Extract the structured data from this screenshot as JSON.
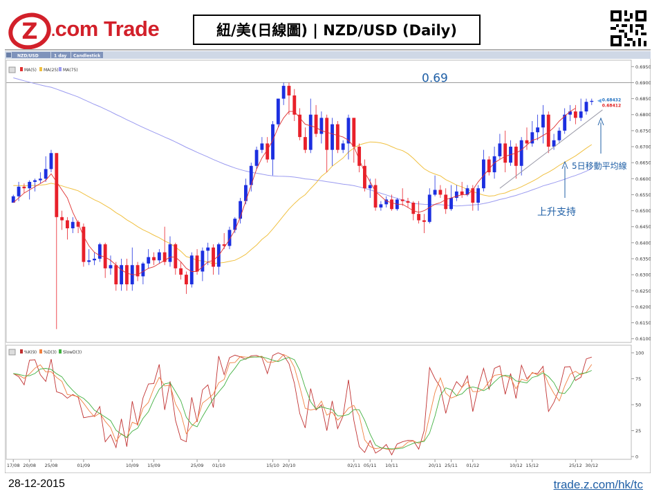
{
  "header": {
    "logo_text_main": "com Trade",
    "logo_text_letter": "Z",
    "title": "紐/美(日線圖) | NZD/USD (Daily)"
  },
  "toolbar": {
    "symbol": "NZD/USD",
    "period": "1 day",
    "style": "Candlestick"
  },
  "legend_price": [
    "MA(5)",
    "MA(25)",
    "MA(75)"
  ],
  "legend_stoch": [
    "%K(9)",
    "%D(3)",
    "SlowD(3)"
  ],
  "colors": {
    "bull": "#1c2fe0",
    "bear": "#e8202a",
    "ma5": "#e03030",
    "ma25": "#f0c040",
    "ma75": "#9a9af0",
    "k": "#c03030",
    "d": "#f08040",
    "slowd": "#40b040",
    "annot": "#1f5fa6"
  },
  "footer": {
    "date": "28-12-2015",
    "url": "trade.z.com/hk/tc"
  },
  "chart_data": {
    "type": "candlestick",
    "title": "紐/美(日線圖) | NZD/USD (Daily)",
    "price_axis": {
      "ylim": [
        0.6095,
        0.6955
      ],
      "ticks": [
        "0.69500",
        "0.69000",
        "0.68500",
        "0.68000",
        "0.67500",
        "0.67000",
        "0.66500",
        "0.66000",
        "0.65500",
        "0.65000",
        "0.64500",
        "0.64000",
        "0.63500",
        "0.63000",
        "0.62500",
        "0.62000",
        "0.61500",
        "0.61000"
      ],
      "current_labels": [
        "0.68432",
        "0.68412"
      ]
    },
    "stoch_axis": {
      "ylim": [
        0,
        100
      ],
      "ticks": [
        "100",
        "75",
        "50",
        "25",
        "0"
      ]
    },
    "x_ticks": [
      {
        "i": 0,
        "label": "17/08"
      },
      {
        "i": 3,
        "label": "20/08"
      },
      {
        "i": 7,
        "label": "25/08"
      },
      {
        "i": 13,
        "label": "01/09"
      },
      {
        "i": 22,
        "label": "10/09"
      },
      {
        "i": 26,
        "label": "15/09"
      },
      {
        "i": 34,
        "label": "25/09"
      },
      {
        "i": 38,
        "label": "01/10"
      },
      {
        "i": 48,
        "label": "15/10"
      },
      {
        "i": 51,
        "label": "20/10"
      },
      {
        "i": 63,
        "label": "02/11"
      },
      {
        "i": 66,
        "label": "05/11"
      },
      {
        "i": 70,
        "label": "10/11"
      },
      {
        "i": 78,
        "label": "20/11"
      },
      {
        "i": 81,
        "label": "25/11"
      },
      {
        "i": 85,
        "label": "01/12"
      },
      {
        "i": 93,
        "label": "10/12"
      },
      {
        "i": 96,
        "label": "15/12"
      },
      {
        "i": 104,
        "label": "25/12"
      },
      {
        "i": 107,
        "label": "30/12"
      }
    ],
    "resistance_level": 0.69,
    "candles": [
      [
        0.6525,
        0.6545,
        0.6525,
        0.655
      ],
      [
        0.6545,
        0.6575,
        0.653,
        0.659
      ],
      [
        0.6575,
        0.657,
        0.6555,
        0.6585
      ],
      [
        0.657,
        0.659,
        0.6535,
        0.6595
      ],
      [
        0.659,
        0.6595,
        0.656,
        0.66
      ],
      [
        0.6595,
        0.66,
        0.6585,
        0.662
      ],
      [
        0.66,
        0.663,
        0.659,
        0.667
      ],
      [
        0.663,
        0.668,
        0.662,
        0.669
      ],
      [
        0.668,
        0.648,
        0.613,
        0.668
      ],
      [
        0.648,
        0.647,
        0.644,
        0.65
      ],
      [
        0.647,
        0.6445,
        0.641,
        0.648
      ],
      [
        0.6445,
        0.6465,
        0.643,
        0.648
      ],
      [
        0.6465,
        0.645,
        0.643,
        0.647
      ],
      [
        0.645,
        0.634,
        0.6325,
        0.646
      ],
      [
        0.634,
        0.6345,
        0.633,
        0.638
      ],
      [
        0.6345,
        0.635,
        0.633,
        0.637
      ],
      [
        0.635,
        0.6395,
        0.634,
        0.64
      ],
      [
        0.6395,
        0.632,
        0.629,
        0.64
      ],
      [
        0.632,
        0.633,
        0.63,
        0.636
      ],
      [
        0.633,
        0.627,
        0.625,
        0.634
      ],
      [
        0.627,
        0.633,
        0.625,
        0.635
      ],
      [
        0.633,
        0.627,
        0.625,
        0.635
      ],
      [
        0.627,
        0.633,
        0.625,
        0.6385
      ],
      [
        0.633,
        0.6295,
        0.628,
        0.634
      ],
      [
        0.6295,
        0.6335,
        0.627,
        0.634
      ],
      [
        0.6335,
        0.6355,
        0.632,
        0.638
      ],
      [
        0.6355,
        0.6345,
        0.633,
        0.637
      ],
      [
        0.6345,
        0.637,
        0.6335,
        0.638
      ],
      [
        0.637,
        0.634,
        0.633,
        0.645
      ],
      [
        0.634,
        0.6395,
        0.6325,
        0.642
      ],
      [
        0.6395,
        0.632,
        0.63,
        0.64
      ],
      [
        0.632,
        0.63,
        0.6285,
        0.634
      ],
      [
        0.63,
        0.627,
        0.624,
        0.631
      ],
      [
        0.627,
        0.636,
        0.626,
        0.637
      ],
      [
        0.636,
        0.631,
        0.63,
        0.638
      ],
      [
        0.631,
        0.6375,
        0.628,
        0.6385
      ],
      [
        0.6375,
        0.6385,
        0.633,
        0.64
      ],
      [
        0.6385,
        0.6325,
        0.63,
        0.6395
      ],
      [
        0.6325,
        0.6395,
        0.63,
        0.64
      ],
      [
        0.6395,
        0.639,
        0.638,
        0.643
      ],
      [
        0.639,
        0.644,
        0.638,
        0.645
      ],
      [
        0.644,
        0.6475,
        0.643,
        0.648
      ],
      [
        0.6475,
        0.653,
        0.646,
        0.654
      ],
      [
        0.653,
        0.658,
        0.652,
        0.66
      ],
      [
        0.658,
        0.664,
        0.656,
        0.665
      ],
      [
        0.664,
        0.669,
        0.663,
        0.67
      ],
      [
        0.669,
        0.671,
        0.668,
        0.673
      ],
      [
        0.671,
        0.666,
        0.665,
        0.673
      ],
      [
        0.666,
        0.677,
        0.661,
        0.678
      ],
      [
        0.677,
        0.685,
        0.676,
        0.685
      ],
      [
        0.685,
        0.689,
        0.683,
        0.69
      ],
      [
        0.689,
        0.686,
        0.68,
        0.69
      ],
      [
        0.686,
        0.68,
        0.678,
        0.688
      ],
      [
        0.68,
        0.673,
        0.672,
        0.682
      ],
      [
        0.673,
        0.669,
        0.668,
        0.676
      ],
      [
        0.669,
        0.68,
        0.668,
        0.685
      ],
      [
        0.68,
        0.674,
        0.673,
        0.683
      ],
      [
        0.674,
        0.679,
        0.671,
        0.681
      ],
      [
        0.679,
        0.669,
        0.662,
        0.68
      ],
      [
        0.669,
        0.677,
        0.664,
        0.679
      ],
      [
        0.677,
        0.669,
        0.668,
        0.678
      ],
      [
        0.669,
        0.671,
        0.668,
        0.672
      ],
      [
        0.671,
        0.679,
        0.666,
        0.68
      ],
      [
        0.679,
        0.67,
        0.665,
        0.679
      ],
      [
        0.67,
        0.664,
        0.662,
        0.671
      ],
      [
        0.664,
        0.657,
        0.656,
        0.666
      ],
      [
        0.657,
        0.658,
        0.654,
        0.66
      ],
      [
        0.658,
        0.651,
        0.65,
        0.66
      ],
      [
        0.651,
        0.652,
        0.65,
        0.653
      ],
      [
        0.652,
        0.6535,
        0.651,
        0.6545
      ],
      [
        0.6535,
        0.6505,
        0.65,
        0.655
      ],
      [
        0.6505,
        0.6535,
        0.65,
        0.654
      ],
      [
        0.6535,
        0.653,
        0.6515,
        0.657
      ],
      [
        0.653,
        0.6525,
        0.651,
        0.654
      ],
      [
        0.6525,
        0.649,
        0.647,
        0.653
      ],
      [
        0.649,
        0.647,
        0.646,
        0.653
      ],
      [
        0.647,
        0.6465,
        0.643,
        0.649
      ],
      [
        0.6465,
        0.655,
        0.646,
        0.657
      ],
      [
        0.655,
        0.6565,
        0.6545,
        0.661
      ],
      [
        0.6565,
        0.655,
        0.654,
        0.658
      ],
      [
        0.655,
        0.6505,
        0.649,
        0.657
      ],
      [
        0.6505,
        0.654,
        0.65,
        0.658
      ],
      [
        0.654,
        0.656,
        0.653,
        0.658
      ],
      [
        0.656,
        0.655,
        0.654,
        0.659
      ],
      [
        0.655,
        0.657,
        0.6545,
        0.658
      ],
      [
        0.657,
        0.6525,
        0.65,
        0.658
      ],
      [
        0.6525,
        0.657,
        0.65,
        0.658
      ],
      [
        0.657,
        0.666,
        0.656,
        0.669
      ],
      [
        0.666,
        0.662,
        0.661,
        0.667
      ],
      [
        0.662,
        0.667,
        0.66,
        0.67
      ],
      [
        0.667,
        0.671,
        0.666,
        0.674
      ],
      [
        0.671,
        0.665,
        0.662,
        0.675
      ],
      [
        0.665,
        0.67,
        0.664,
        0.672
      ],
      [
        0.67,
        0.664,
        0.66,
        0.671
      ],
      [
        0.664,
        0.672,
        0.661,
        0.673
      ],
      [
        0.672,
        0.671,
        0.669,
        0.676
      ],
      [
        0.671,
        0.6745,
        0.67,
        0.678
      ],
      [
        0.6745,
        0.676,
        0.672,
        0.68
      ],
      [
        0.676,
        0.68,
        0.671,
        0.683
      ],
      [
        0.68,
        0.67,
        0.668,
        0.681
      ],
      [
        0.67,
        0.672,
        0.669,
        0.674
      ],
      [
        0.672,
        0.675,
        0.671,
        0.676
      ],
      [
        0.675,
        0.68,
        0.674,
        0.682
      ],
      [
        0.68,
        0.681,
        0.678,
        0.683
      ],
      [
        0.681,
        0.679,
        0.677,
        0.683
      ],
      [
        0.679,
        0.681,
        0.678,
        0.685
      ],
      [
        0.681,
        0.684,
        0.68,
        0.685
      ],
      [
        0.684,
        0.6843,
        0.683,
        0.685
      ]
    ],
    "ma5": [
      0.6525,
      0.654,
      0.6555,
      0.6565,
      0.6575,
      0.6585,
      0.6595,
      0.6615,
      0.659,
      0.6565,
      0.654,
      0.6495,
      0.646,
      0.642,
      0.639,
      0.637,
      0.636,
      0.6355,
      0.6345,
      0.633,
      0.6315,
      0.6305,
      0.63,
      0.63,
      0.631,
      0.632,
      0.6325,
      0.6335,
      0.6345,
      0.6355,
      0.6355,
      0.634,
      0.632,
      0.631,
      0.631,
      0.6325,
      0.634,
      0.6345,
      0.636,
      0.6385,
      0.641,
      0.644,
      0.648,
      0.653,
      0.658,
      0.663,
      0.6665,
      0.669,
      0.672,
      0.676,
      0.679,
      0.681,
      0.681,
      0.679,
      0.677,
      0.6765,
      0.676,
      0.675,
      0.6745,
      0.674,
      0.6735,
      0.673,
      0.672,
      0.67,
      0.666,
      0.662,
      0.659,
      0.656,
      0.6545,
      0.653,
      0.6525,
      0.652,
      0.652,
      0.651,
      0.65,
      0.6495,
      0.65,
      0.651,
      0.652,
      0.6525,
      0.6535,
      0.654,
      0.6545,
      0.655,
      0.655,
      0.6565,
      0.659,
      0.661,
      0.663,
      0.665,
      0.666,
      0.667,
      0.6675,
      0.668,
      0.669,
      0.6705,
      0.672,
      0.6725,
      0.6735,
      0.6745,
      0.676,
      0.678,
      0.6795,
      0.681,
      0.682
    ]
  }
}
